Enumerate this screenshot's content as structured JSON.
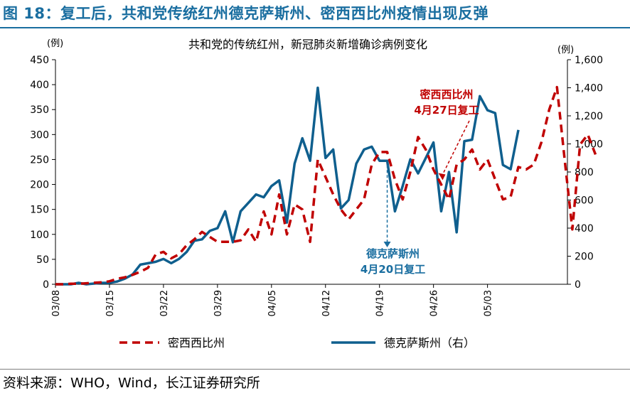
{
  "figure_title": "图 18：复工后，共和党传统红州德克萨斯州、密西西比州疫情出现反弹",
  "source": "资料来源：WHO，Wind，长江证券研究所",
  "chart_data": {
    "type": "line",
    "title": "共和党的传统红州，新冠肺炎新增确诊病例变化",
    "left_unit": "(例)",
    "right_unit": "(例)",
    "left_ylim": [
      0,
      450
    ],
    "left_ticks": [
      "0",
      "50",
      "100",
      "150",
      "200",
      "250",
      "300",
      "350",
      "400",
      "450"
    ],
    "right_ylim": [
      0,
      1600
    ],
    "right_ticks": [
      "0",
      "200",
      "400",
      "600",
      "800",
      "1,000",
      "1,200",
      "1,400",
      "1,600"
    ],
    "x_ticks": [
      "03/08",
      "03/15",
      "03/22",
      "03/29",
      "04/05",
      "04/12",
      "04/19",
      "04/26",
      "05/03"
    ],
    "start_date": "03/08",
    "series": [
      {
        "name": "密西西比州",
        "axis": "left",
        "color": "#c00000",
        "dash": true,
        "values": [
          0,
          0,
          1,
          1,
          2,
          3,
          4,
          6,
          11,
          14,
          19,
          25,
          33,
          60,
          65,
          52,
          60,
          78,
          90,
          105,
          95,
          85,
          85,
          85,
          88,
          110,
          85,
          146,
          100,
          180,
          100,
          160,
          150,
          85,
          250,
          215,
          180,
          150,
          130,
          150,
          170,
          240,
          265,
          265,
          210,
          170,
          225,
          295,
          270,
          230,
          200,
          170,
          240,
          250,
          270,
          230,
          250,
          210,
          170,
          175,
          235,
          230,
          240,
          285,
          350,
          395,
          250,
          110,
          280,
          300,
          260
        ]
      },
      {
        "name": "德克萨斯州（右）",
        "axis": "right",
        "color": "#0f5f8e",
        "dash": false,
        "values": [
          0,
          0,
          0,
          10,
          0,
          5,
          10,
          10,
          20,
          40,
          70,
          140,
          150,
          160,
          180,
          150,
          180,
          230,
          310,
          320,
          380,
          400,
          520,
          300,
          520,
          580,
          640,
          620,
          700,
          740,
          440,
          860,
          1040,
          880,
          1400,
          900,
          960,
          540,
          600,
          860,
          960,
          980,
          880,
          880,
          520,
          700,
          890,
          790,
          900,
          1010,
          520,
          800,
          370,
          1020,
          1030,
          1340,
          1240,
          1220,
          850,
          820,
          1100
        ]
      }
    ],
    "annotations": [
      {
        "series": 1,
        "index": 43,
        "lines": [
          "德克萨斯州",
          "4月20日复工"
        ],
        "color": "#1a6ea0"
      },
      {
        "series": 0,
        "index": 50,
        "lines": [
          "密西西比州",
          "4月27日复工"
        ],
        "color": "#c00000"
      }
    ]
  }
}
